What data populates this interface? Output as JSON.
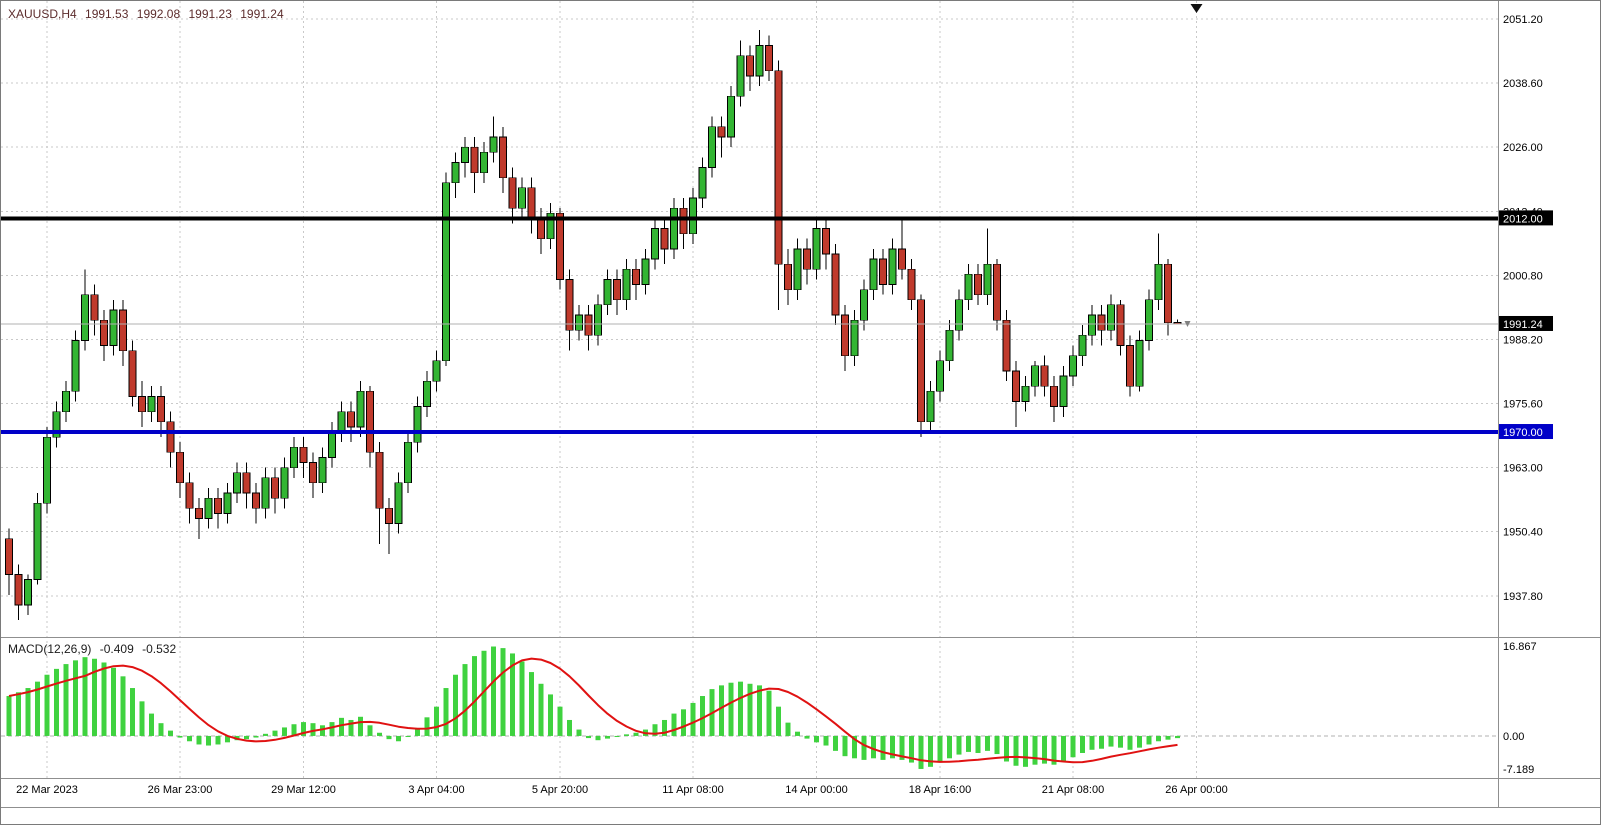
{
  "header": {
    "symbol_period": "XAUUSD,H4",
    "open": "1991.53",
    "high": "1992.08",
    "low": "1991.23",
    "close": "1991.24"
  },
  "colors": {
    "background": "#ffffff",
    "grid": "#c9c9c9",
    "candle_up": "#33b533",
    "candle_down": "#c03a2c",
    "candle_outline": "#000000",
    "wick": "#000000",
    "macd_histogram": "#3fd23f",
    "macd_signal": "#e01212",
    "macd_zero_line": "#b0b0b0",
    "hline_black": "#000000",
    "hline_blue": "#0000c8",
    "current_price_line": "#b0b0b0",
    "current_price_badge_bg": "#000000",
    "badge_text": "#ffffff",
    "axis_text": "#000000",
    "title_text": "#5b2c2c",
    "separator": "#8f8f8f",
    "shift_marker": "#111111",
    "price_marker": "#808080"
  },
  "price_axis": {
    "tick_labels": [
      "2051.20",
      "2038.60",
      "2026.00",
      "2013.40",
      "2000.80",
      "1988.20",
      "1975.60",
      "1963.00",
      "1950.40",
      "1937.80"
    ],
    "current_price_label": "1991.24"
  },
  "hlines": [
    {
      "price": 2012.0,
      "label": "2012.00",
      "color_key": "hline_black"
    },
    {
      "price": 1970.0,
      "label": "1970.00",
      "color_key": "hline_blue"
    }
  ],
  "time_axis": {
    "labels": [
      {
        "text": "22 Mar 2023",
        "bar": 4
      },
      {
        "text": "26 Mar 23:00",
        "bar": 18
      },
      {
        "text": "29 Mar 12:00",
        "bar": 31
      },
      {
        "text": "3 Apr 04:00",
        "bar": 45
      },
      {
        "text": "5 Apr 20:00",
        "bar": 58
      },
      {
        "text": "11 Apr 08:00",
        "bar": 72
      },
      {
        "text": "14 Apr 00:00",
        "bar": 85
      },
      {
        "text": "18 Apr 16:00",
        "bar": 98
      },
      {
        "text": "21 Apr 08:00",
        "bar": 112
      },
      {
        "text": "26 Apr 00:00",
        "bar": 125
      }
    ]
  },
  "macd": {
    "name": "MACD(12,26,9)",
    "main_value": "-0.409",
    "signal_value": "-0.532",
    "axis_labels": [
      "16.867",
      "0.00",
      "-7.189"
    ]
  },
  "chart_data": [
    {
      "type": "candlestick",
      "title": "XAUUSD,H4",
      "symbol": "XAUUSD",
      "timeframe": "H4",
      "ylim": [
        1929.7,
        2054.74
      ],
      "y_ticks": [
        2051.2,
        2038.6,
        2026.0,
        2013.4,
        2000.8,
        1988.2,
        1975.6,
        1963.0,
        1950.4,
        1937.8
      ],
      "last_price": 1991.24,
      "horizontal_levels": [
        2012.0,
        1970.0
      ],
      "grid": true,
      "ohlc": [
        [
          1949,
          1951,
          1938,
          1942
        ],
        [
          1942,
          1944,
          1933,
          1936
        ],
        [
          1936,
          1942,
          1934,
          1941
        ],
        [
          1941,
          1958,
          1940,
          1956
        ],
        [
          1956,
          1971,
          1954,
          1969
        ],
        [
          1969,
          1976,
          1967,
          1974
        ],
        [
          1974,
          1980,
          1972,
          1978
        ],
        [
          1978,
          1990,
          1976,
          1988
        ],
        [
          1988,
          2002,
          1986,
          1997
        ],
        [
          1997,
          1999,
          1989,
          1992
        ],
        [
          1992,
          1994,
          1984,
          1987
        ],
        [
          1987,
          1996,
          1985,
          1994
        ],
        [
          1994,
          1996,
          1983,
          1986
        ],
        [
          1986,
          1988,
          1975,
          1977
        ],
        [
          1977,
          1980,
          1971,
          1974
        ],
        [
          1974,
          1979,
          1972,
          1977
        ],
        [
          1977,
          1979,
          1969,
          1972
        ],
        [
          1972,
          1974,
          1963,
          1966
        ],
        [
          1966,
          1968,
          1957,
          1960
        ],
        [
          1960,
          1962,
          1952,
          1955
        ],
        [
          1955,
          1957,
          1949,
          1953
        ],
        [
          1953,
          1959,
          1951,
          1957
        ],
        [
          1957,
          1959,
          1951,
          1954
        ],
        [
          1954,
          1960,
          1952,
          1958
        ],
        [
          1958,
          1964,
          1956,
          1962
        ],
        [
          1962,
          1964,
          1955,
          1958
        ],
        [
          1958,
          1960,
          1952,
          1955
        ],
        [
          1955,
          1963,
          1953,
          1961
        ],
        [
          1961,
          1963,
          1954,
          1957
        ],
        [
          1957,
          1965,
          1955,
          1963
        ],
        [
          1963,
          1969,
          1961,
          1967
        ],
        [
          1967,
          1969,
          1961,
          1964
        ],
        [
          1964,
          1966,
          1957,
          1960
        ],
        [
          1960,
          1967,
          1958,
          1965
        ],
        [
          1965,
          1972,
          1963,
          1970
        ],
        [
          1970,
          1976,
          1968,
          1974
        ],
        [
          1974,
          1976,
          1968,
          1971
        ],
        [
          1971,
          1980,
          1969,
          1978
        ],
        [
          1978,
          1979,
          1963,
          1966
        ],
        [
          1966,
          1968,
          1948,
          1955
        ],
        [
          1955,
          1957,
          1946,
          1952
        ],
        [
          1952,
          1962,
          1950,
          1960
        ],
        [
          1960,
          1970,
          1958,
          1968
        ],
        [
          1968,
          1977,
          1966,
          1975
        ],
        [
          1975,
          1982,
          1973,
          1980
        ],
        [
          1980,
          1986,
          1978,
          1984
        ],
        [
          1984,
          2021,
          1983,
          2019
        ],
        [
          2019,
          2025,
          2016,
          2023
        ],
        [
          2023,
          2028,
          2020,
          2026
        ],
        [
          2026,
          2028,
          2017,
          2021
        ],
        [
          2021,
          2027,
          2019,
          2025
        ],
        [
          2025,
          2032,
          2023,
          2028
        ],
        [
          2028,
          2030,
          2017,
          2020
        ],
        [
          2020,
          2022,
          2011,
          2014
        ],
        [
          2014,
          2020,
          2012,
          2018
        ],
        [
          2018,
          2020,
          2009,
          2012
        ],
        [
          2012,
          2014,
          2005,
          2008
        ],
        [
          2008,
          2015,
          2006,
          2013
        ],
        [
          2013,
          2014,
          1998,
          2000
        ],
        [
          2000,
          2002,
          1986,
          1990
        ],
        [
          1990,
          1995,
          1988,
          1993
        ],
        [
          1993,
          1995,
          1986,
          1989
        ],
        [
          1989,
          1997,
          1987,
          1995
        ],
        [
          1995,
          2002,
          1993,
          2000
        ],
        [
          2000,
          2002,
          1993,
          1996
        ],
        [
          1996,
          2004,
          1994,
          2002
        ],
        [
          2002,
          2004,
          1996,
          1999
        ],
        [
          1999,
          2006,
          1997,
          2004
        ],
        [
          2004,
          2012,
          2002,
          2010
        ],
        [
          2010,
          2012,
          2003,
          2006
        ],
        [
          2006,
          2016,
          2004,
          2014
        ],
        [
          2014,
          2016,
          2006,
          2009
        ],
        [
          2009,
          2018,
          2007,
          2016
        ],
        [
          2016,
          2024,
          2014,
          2022
        ],
        [
          2022,
          2032,
          2020,
          2030
        ],
        [
          2030,
          2032,
          2024,
          2028
        ],
        [
          2028,
          2038,
          2026,
          2036
        ],
        [
          2036,
          2047,
          2034,
          2044
        ],
        [
          2044,
          2046,
          2037,
          2040
        ],
        [
          2040,
          2049,
          2038,
          2046
        ],
        [
          2046,
          2048,
          2039,
          2041
        ],
        [
          2041,
          2043,
          1994,
          2003
        ],
        [
          2003,
          2006,
          1995,
          1998
        ],
        [
          1998,
          2008,
          1996,
          2006
        ],
        [
          2006,
          2008,
          1999,
          2002
        ],
        [
          2002,
          2012,
          2000,
          2010
        ],
        [
          2010,
          2012,
          2002,
          2005
        ],
        [
          2005,
          2007,
          1991,
          1993
        ],
        [
          1993,
          1995,
          1982,
          1985
        ],
        [
          1985,
          1994,
          1983,
          1992
        ],
        [
          1992,
          2000,
          1990,
          1998
        ],
        [
          1998,
          2006,
          1996,
          2004
        ],
        [
          2004,
          2006,
          1997,
          1999
        ],
        [
          1999,
          2008,
          1997,
          2006
        ],
        [
          2006,
          2012,
          2000,
          2002
        ],
        [
          2002,
          2004,
          1994,
          1996
        ],
        [
          1996,
          1997,
          1969,
          1972
        ],
        [
          1972,
          1980,
          1970,
          1978
        ],
        [
          1978,
          1986,
          1976,
          1984
        ],
        [
          1984,
          1992,
          1982,
          1990
        ],
        [
          1990,
          1998,
          1988,
          1996
        ],
        [
          1996,
          2003,
          1994,
          2001
        ],
        [
          2001,
          2003,
          1995,
          1997
        ],
        [
          1997,
          2010,
          1995,
          2003
        ],
        [
          2003,
          2004,
          1990,
          1992
        ],
        [
          1992,
          1994,
          1980,
          1982
        ],
        [
          1982,
          1984,
          1971,
          1976
        ],
        [
          1976,
          1981,
          1974,
          1979
        ],
        [
          1979,
          1984,
          1977,
          1983
        ],
        [
          1983,
          1985,
          1977,
          1979
        ],
        [
          1979,
          1981,
          1972,
          1975
        ],
        [
          1975,
          1983,
          1973,
          1981
        ],
        [
          1981,
          1987,
          1979,
          1985
        ],
        [
          1985,
          1991,
          1983,
          1989
        ],
        [
          1989,
          1995,
          1987,
          1993
        ],
        [
          1993,
          1995,
          1987,
          1990
        ],
        [
          1990,
          1997,
          1988,
          1995
        ],
        [
          1995,
          1996,
          1985,
          1987
        ],
        [
          1987,
          1989,
          1977,
          1979
        ],
        [
          1979,
          1990,
          1978,
          1988
        ],
        [
          1988,
          1998,
          1986,
          1996
        ],
        [
          1996,
          2009,
          1994,
          2003
        ],
        [
          2003,
          2004,
          1989,
          1991.5
        ],
        [
          1991.53,
          1992.08,
          1991.23,
          1991.24
        ]
      ]
    },
    {
      "type": "macd",
      "title": "MACD(12,26,9)",
      "params": [
        12,
        26,
        9
      ],
      "ylim": [
        -7.9,
        18.4
      ],
      "y_ticks": [
        16.867,
        0.0,
        -7.189
      ],
      "current": {
        "macd": -0.409,
        "signal": -0.532
      },
      "signal_rule": "SMA9 of histogram",
      "histogram": [
        7.5,
        8.2,
        9.0,
        10.2,
        11.5,
        12.6,
        13.5,
        14.2,
        14.8,
        14.5,
        13.8,
        12.8,
        11.2,
        9.0,
        6.5,
        4.2,
        2.4,
        1.0,
        -0.3,
        -1.0,
        -1.6,
        -1.8,
        -1.6,
        -1.2,
        -0.8,
        -0.6,
        -0.3,
        0.4,
        1.0,
        1.6,
        2.2,
        2.6,
        2.4,
        2.0,
        2.6,
        3.4,
        3.0,
        3.6,
        2.0,
        0.6,
        -0.6,
        -1.0,
        -0.2,
        1.5,
        3.5,
        5.5,
        9.0,
        11.5,
        13.5,
        15.0,
        16.0,
        16.8,
        16.5,
        15.5,
        14.0,
        12.0,
        9.8,
        7.8,
        5.5,
        3.0,
        1.2,
        -0.4,
        -0.8,
        -0.5,
        -0.2,
        0.3,
        0.6,
        1.2,
        2.2,
        3.0,
        4.2,
        5.0,
        6.2,
        7.5,
        8.8,
        9.5,
        10.0,
        10.2,
        9.8,
        9.5,
        8.5,
        5.5,
        2.5,
        0.8,
        -0.5,
        -1.2,
        -1.8,
        -2.8,
        -3.8,
        -4.2,
        -4.5,
        -4.2,
        -4.5,
        -4.2,
        -4.5,
        -5.0,
        -6.2,
        -5.8,
        -5.0,
        -4.2,
        -3.5,
        -3.0,
        -3.2,
        -2.8,
        -3.4,
        -4.8,
        -5.6,
        -5.8,
        -5.4,
        -5.2,
        -5.4,
        -4.8,
        -4.0,
        -3.2,
        -2.6,
        -2.4,
        -2.0,
        -2.2,
        -2.6,
        -2.2,
        -1.6,
        -1.0,
        -0.7,
        -0.409
      ]
    }
  ]
}
